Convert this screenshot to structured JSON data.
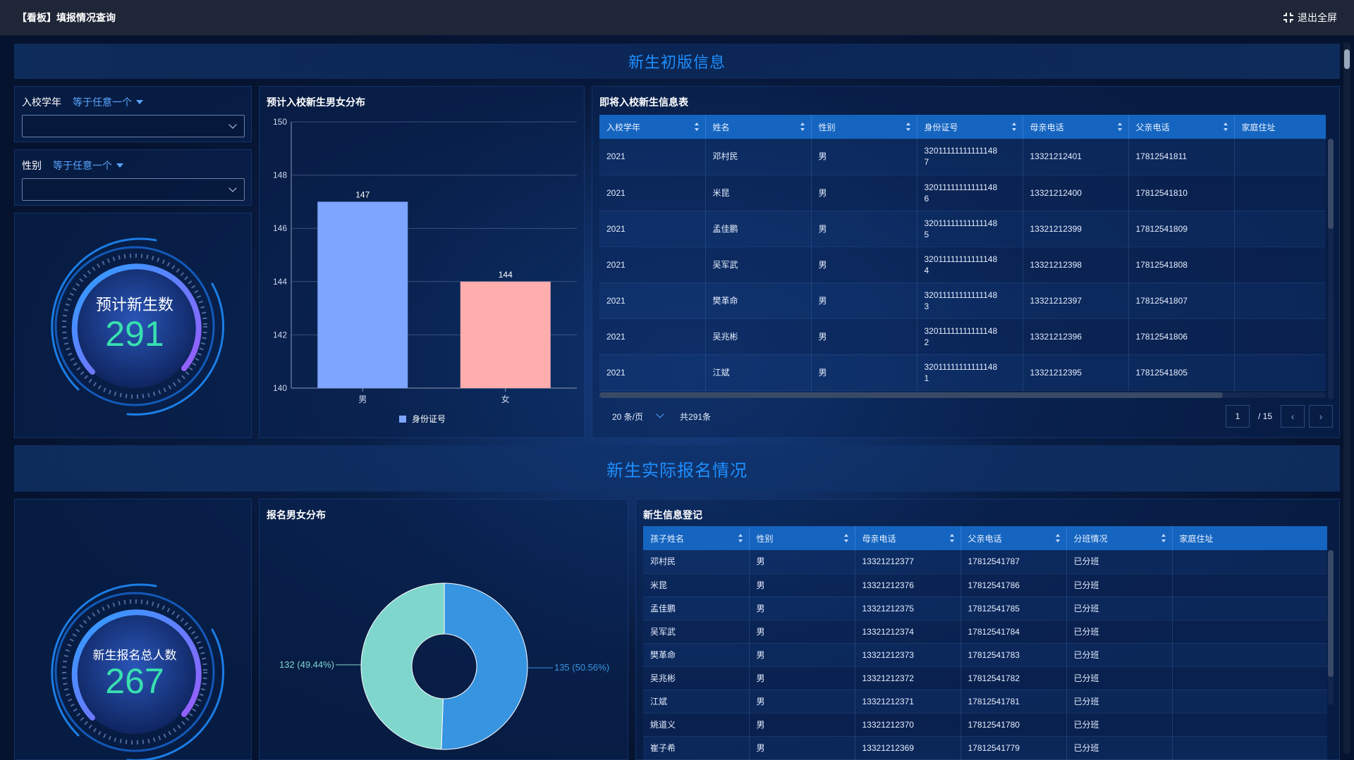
{
  "header": {
    "title": "【看板】填报情况查询",
    "exit_label": "退出全屏"
  },
  "section1": {
    "title": "新生初版信息"
  },
  "section2": {
    "title": "新生实际报名情况"
  },
  "filters": {
    "year": {
      "label": "入校学年",
      "operator": "等于任意一个",
      "value": ""
    },
    "gender": {
      "label": "性别",
      "operator": "等于任意一个",
      "value": ""
    }
  },
  "gauge1": {
    "label": "预计新生数",
    "value": "291"
  },
  "gauge2": {
    "label": "新生报名总人数",
    "value": "267"
  },
  "bar_panel": {
    "title": "预计入校新生男女分布"
  },
  "chart_data": [
    {
      "type": "bar",
      "title": "预计入校新生男女分布",
      "categories": [
        "男",
        "女"
      ],
      "series": [
        {
          "name": "身份证号",
          "values": [
            147,
            144
          ]
        }
      ],
      "colors": [
        "#7ea5ff",
        "#ffadad"
      ],
      "ylim": [
        140,
        150
      ],
      "yticks": [
        "140",
        "142",
        "144",
        "146",
        "148",
        "150"
      ],
      "data_labels": [
        "147",
        "144"
      ],
      "grid": true,
      "legend": "bottom"
    },
    {
      "type": "pie",
      "title": "报名男女分布",
      "donut": true,
      "slices": [
        {
          "value": 135,
          "label": "135 (50.56%)",
          "color": "#3794e0"
        },
        {
          "value": 132,
          "label": "132 (49.44%)",
          "color": "#7fd6cd"
        }
      ]
    }
  ],
  "pie_panel": {
    "title": "报名男女分布"
  },
  "table1": {
    "title": "即将入校新生信息表",
    "columns": [
      "入校学年",
      "姓名",
      "性别",
      "身份证号",
      "母亲电话",
      "父亲电话",
      "家庭住址"
    ],
    "rows": [
      [
        "2021",
        "邓村民",
        "男",
        "32011111111111148 7",
        "13321212401",
        "17812541811",
        ""
      ],
      [
        "2021",
        "米昆",
        "男",
        "32011111111111148 6",
        "13321212400",
        "17812541810",
        ""
      ],
      [
        "2021",
        "孟佳鹏",
        "男",
        "32011111111111148 5",
        "13321212399",
        "17812541809",
        ""
      ],
      [
        "2021",
        "吴军武",
        "男",
        "32011111111111148 4",
        "13321212398",
        "17812541808",
        ""
      ],
      [
        "2021",
        "樊革命",
        "男",
        "32011111111111148 3",
        "13321212397",
        "17812541807",
        ""
      ],
      [
        "2021",
        "吴兆彬",
        "男",
        "32011111111111148 2",
        "13321212396",
        "17812541806",
        ""
      ],
      [
        "2021",
        "江斌",
        "男",
        "32011111111111148 1",
        "13321212395",
        "17812541805",
        ""
      ]
    ],
    "page_size": "20 条/页",
    "total": "共291条",
    "current_page": "1",
    "page_total": "/ 15"
  },
  "table2": {
    "title": "新生信息登记",
    "columns": [
      "孩子姓名",
      "性别",
      "母亲电话",
      "父亲电话",
      "分班情况",
      "家庭住址"
    ],
    "rows": [
      [
        "邓村民",
        "男",
        "13321212377",
        "17812541787",
        "已分班",
        ""
      ],
      [
        "米昆",
        "男",
        "13321212376",
        "17812541786",
        "已分班",
        ""
      ],
      [
        "孟佳鹏",
        "男",
        "13321212375",
        "17812541785",
        "已分班",
        ""
      ],
      [
        "吴军武",
        "男",
        "13321212374",
        "17812541784",
        "已分班",
        ""
      ],
      [
        "樊革命",
        "男",
        "13321212373",
        "17812541783",
        "已分班",
        ""
      ],
      [
        "吴兆彬",
        "男",
        "13321212372",
        "17812541782",
        "已分班",
        ""
      ],
      [
        "江斌",
        "男",
        "13321212371",
        "17812541781",
        "已分班",
        ""
      ],
      [
        "姚道义",
        "男",
        "13321212370",
        "17812541780",
        "已分班",
        ""
      ],
      [
        "崔子希",
        "男",
        "13321212369",
        "17812541779",
        "已分班",
        ""
      ]
    ]
  }
}
